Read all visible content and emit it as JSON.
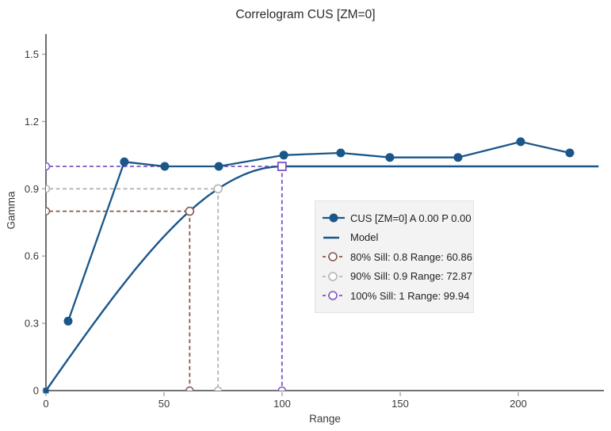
{
  "chart_data": {
    "type": "line",
    "title": "Correlogram CUS [ZM=0]",
    "xlabel": "Range",
    "ylabel": "Gamma",
    "xlim": [
      0,
      235.5
    ],
    "ylim": [
      0,
      1.59
    ],
    "xticks": [
      0,
      50,
      100,
      150,
      200
    ],
    "yticks": [
      0,
      0.3,
      0.6,
      0.9,
      1.2,
      1.5
    ],
    "grid": false,
    "legend_position": "center-right",
    "series": [
      {
        "name": "CUS [ZM=0] A 0.00 P 0.00",
        "type": "line-markers",
        "color": "#1a5689",
        "points": [
          [
            9.4,
            0.31
          ],
          [
            33.2,
            1.02
          ],
          [
            50.3,
            1.0
          ],
          [
            73.2,
            1.0
          ],
          [
            100.7,
            1.05
          ],
          [
            124.8,
            1.06
          ],
          [
            145.6,
            1.04
          ],
          [
            174.5,
            1.04
          ],
          [
            201.0,
            1.11
          ],
          [
            221.8,
            1.06
          ]
        ]
      },
      {
        "name": "Model",
        "type": "model-line",
        "color": "#1a5689",
        "model": {
          "kind": "spherical",
          "sill": 1.0,
          "range": 99.94,
          "xmax": 234.0
        }
      }
    ],
    "sill_lines": [
      {
        "label": "80% Sill: 0.8 Range: 60.86",
        "sill": 0.8,
        "range": 60.86,
        "color": "#84594e",
        "marker": "circle"
      },
      {
        "label": "90% Sill: 0.9 Range: 72.87",
        "sill": 0.9,
        "range": 72.87,
        "color": "#b4b4b4",
        "marker": "circle"
      },
      {
        "label": "100% Sill: 1 Range: 99.94",
        "sill": 1.0,
        "range": 99.94,
        "color": "#7d53c4",
        "marker": "square"
      }
    ],
    "legend": [
      {
        "label": "CUS [ZM=0] A 0.00 P 0.00",
        "marker": "line-filled-circle",
        "color": "#1a5689"
      },
      {
        "label": "Model",
        "marker": "line",
        "color": "#1a5689"
      },
      {
        "label": "80% Sill: 0.8 Range: 60.86",
        "marker": "dash-open-circle",
        "color": "#84594e"
      },
      {
        "label": "90% Sill: 0.9 Range: 72.87",
        "marker": "dash-open-circle",
        "color": "#b4b4b4"
      },
      {
        "label": "100% Sill: 1 Range: 99.94",
        "marker": "dash-open-circle",
        "color": "#7d53c4"
      }
    ],
    "colors": {
      "axis": "#1f1f1f",
      "tick": "#a6a6a6",
      "tick_text": "#3a3a3a",
      "legend_bg": "#f3f3f3",
      "legend_border": "#e1e1e1"
    }
  }
}
